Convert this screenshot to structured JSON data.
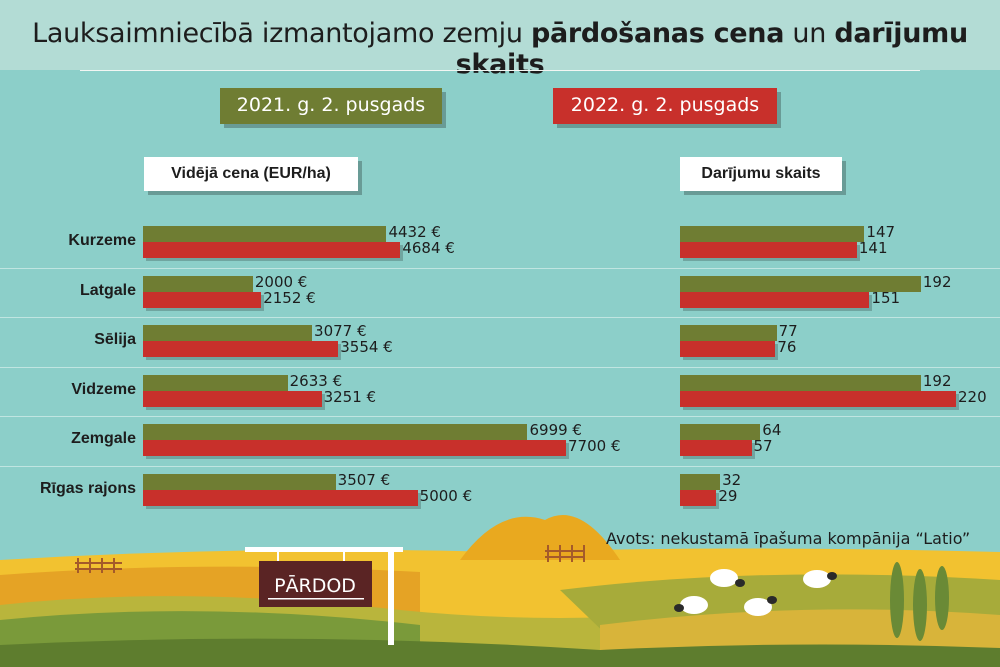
{
  "title": {
    "part1": "Lauksaimniecībā izmantojamo zemju ",
    "bold1": "pārdošanas cena",
    "part2": " un ",
    "bold2": "darījumu skaits"
  },
  "legend": {
    "series1": "2021. g. 2. pusgads",
    "series2": "2022. g. 2. pusgads"
  },
  "colors": {
    "series1": "#6f7d33",
    "series2": "#c8302b",
    "background": "#8ccfc9"
  },
  "sign_text": "PĀRDOD",
  "source": "Avots: nekustamā īpašuma kompānija “Latio”",
  "chart_data": [
    {
      "type": "bar",
      "orientation": "horizontal",
      "title": "Vidējā cena (EUR/ha)",
      "categories": [
        "Kurzeme",
        "Latgale",
        "Sēlija",
        "Vidzeme",
        "Zemgale",
        "Rīgas rajons"
      ],
      "series": [
        {
          "name": "2021. g. 2. pusgads",
          "values": [
            4432,
            2000,
            3077,
            2633,
            6999,
            3507
          ],
          "labels": [
            "4432 €",
            "2000 €",
            "3077 €",
            "2633 €",
            "6999 €",
            "3507 €"
          ]
        },
        {
          "name": "2022. g. 2. pusgads",
          "values": [
            4684,
            2152,
            3554,
            3251,
            7700,
            5000
          ],
          "labels": [
            "4684 €",
            "2152 €",
            "3554 €",
            "3251 €",
            "7700 €",
            "5000 €"
          ]
        }
      ],
      "xlim": [
        0,
        7700
      ]
    },
    {
      "type": "bar",
      "orientation": "horizontal",
      "title": "Darījumu skaits",
      "categories": [
        "Kurzeme",
        "Latgale",
        "Sēlija",
        "Vidzeme",
        "Zemgale",
        "Rīgas rajons"
      ],
      "series": [
        {
          "name": "2021. g. 2. pusgads",
          "values": [
            147,
            192,
            77,
            192,
            64,
            32
          ],
          "labels": [
            "147",
            "192",
            "77",
            "192",
            "64",
            "32"
          ]
        },
        {
          "name": "2022. g. 2. pusgads",
          "values": [
            141,
            151,
            76,
            220,
            57,
            29
          ],
          "labels": [
            "141",
            "151",
            "76",
            "220",
            "57",
            "29"
          ]
        }
      ],
      "xlim": [
        0,
        220
      ]
    }
  ]
}
